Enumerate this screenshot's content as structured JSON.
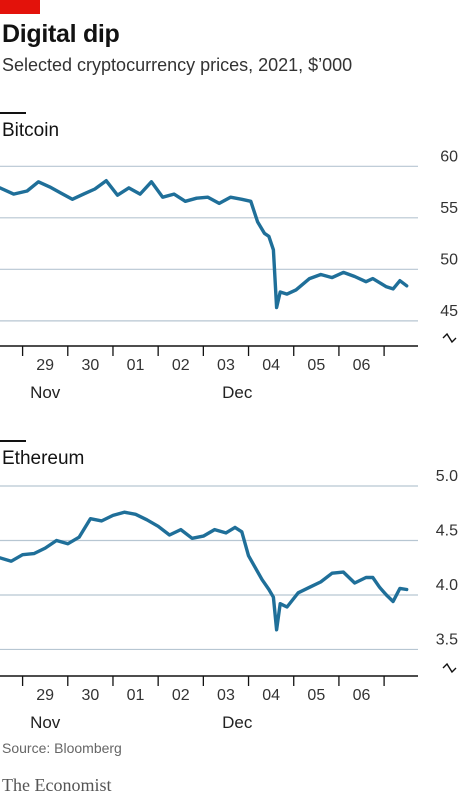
{
  "header": {
    "title": "Digital dip",
    "subtitle": "Selected cryptocurrency prices, 2021, $’000"
  },
  "footer": {
    "source": "Source: Bloomberg",
    "brand": "The Economist"
  },
  "colors": {
    "line": "#1f6f99",
    "grid": "#b7c6d2",
    "axis": "#121212",
    "accent": "#e3120b"
  },
  "chart_data": [
    {
      "type": "line",
      "title": "Bitcoin",
      "ylim": [
        44.5,
        61
      ],
      "yticks": [
        45,
        50,
        55,
        60
      ],
      "ytick_labels": [
        "45",
        "50",
        "55",
        "60"
      ],
      "axis_break": true,
      "grid": true,
      "xlim": [
        28.0,
        37.25
      ],
      "xticks": [
        28.5,
        29.5,
        30.5,
        31.5,
        32.5,
        33.5,
        34.5,
        35.5,
        36.5
      ],
      "xtick_labels": [
        "29",
        "30",
        "01",
        "02",
        "03",
        "04",
        "05",
        "06"
      ],
      "month_labels": [
        {
          "label": "Nov",
          "x": 29.0
        },
        {
          "label": "Dec",
          "x": 33.25
        }
      ],
      "series": [
        {
          "x": [
            28.0,
            28.3,
            28.6,
            28.85,
            29.1,
            29.35,
            29.6,
            29.85,
            30.1,
            30.35,
            30.6,
            30.85,
            31.1,
            31.35,
            31.6,
            31.85,
            32.1,
            32.35,
            32.6,
            32.85,
            33.1,
            33.35,
            33.55,
            33.7,
            33.85,
            33.95,
            34.05,
            34.12,
            34.2,
            34.35,
            34.55,
            34.85,
            35.1,
            35.35,
            35.6,
            35.85,
            36.1,
            36.25,
            36.4,
            36.55,
            36.7,
            36.85,
            37.0
          ],
          "y": [
            57.9,
            57.3,
            57.6,
            58.5,
            58.0,
            57.4,
            56.8,
            57.3,
            57.8,
            58.6,
            57.2,
            57.9,
            57.3,
            58.5,
            57.0,
            57.3,
            56.6,
            56.9,
            57.0,
            56.4,
            57.0,
            56.8,
            56.6,
            54.6,
            53.5,
            53.2,
            51.9,
            46.3,
            47.8,
            47.6,
            48.0,
            49.1,
            49.5,
            49.2,
            49.7,
            49.3,
            48.8,
            49.1,
            48.7,
            48.3,
            48.1,
            48.9,
            48.4
          ]
        }
      ]
    },
    {
      "type": "line",
      "title": "Ethereum",
      "ylim": [
        3.44,
        5.0
      ],
      "yticks": [
        3.5,
        4.0,
        4.5,
        5.0
      ],
      "ytick_labels": [
        "3.5",
        "4.0",
        "4.5",
        "5.0"
      ],
      "axis_break": true,
      "grid": true,
      "xlim": [
        28.0,
        37.25
      ],
      "xticks": [
        28.5,
        29.5,
        30.5,
        31.5,
        32.5,
        33.5,
        34.5,
        35.5,
        36.5
      ],
      "xtick_labels": [
        "29",
        "30",
        "01",
        "02",
        "03",
        "04",
        "05",
        "06"
      ],
      "month_labels": [
        {
          "label": "Nov",
          "x": 29.0
        },
        {
          "label": "Dec",
          "x": 33.25
        }
      ],
      "series": [
        {
          "x": [
            28.0,
            28.25,
            28.5,
            28.75,
            29.0,
            29.25,
            29.5,
            29.75,
            30.0,
            30.25,
            30.5,
            30.75,
            31.0,
            31.25,
            31.5,
            31.75,
            32.0,
            32.25,
            32.5,
            32.75,
            33.0,
            33.2,
            33.35,
            33.5,
            33.65,
            33.8,
            33.95,
            34.05,
            34.12,
            34.2,
            34.35,
            34.6,
            34.85,
            35.1,
            35.35,
            35.6,
            35.85,
            36.1,
            36.25,
            36.4,
            36.55,
            36.7,
            36.85,
            37.0
          ],
          "y": [
            4.34,
            4.31,
            4.37,
            4.38,
            4.43,
            4.5,
            4.47,
            4.53,
            4.7,
            4.68,
            4.73,
            4.76,
            4.74,
            4.69,
            4.63,
            4.55,
            4.6,
            4.52,
            4.54,
            4.6,
            4.57,
            4.62,
            4.58,
            4.36,
            4.25,
            4.14,
            4.05,
            3.98,
            3.68,
            3.92,
            3.89,
            4.02,
            4.07,
            4.12,
            4.2,
            4.21,
            4.11,
            4.16,
            4.16,
            4.07,
            4.0,
            3.94,
            4.06,
            4.05
          ]
        }
      ]
    }
  ]
}
